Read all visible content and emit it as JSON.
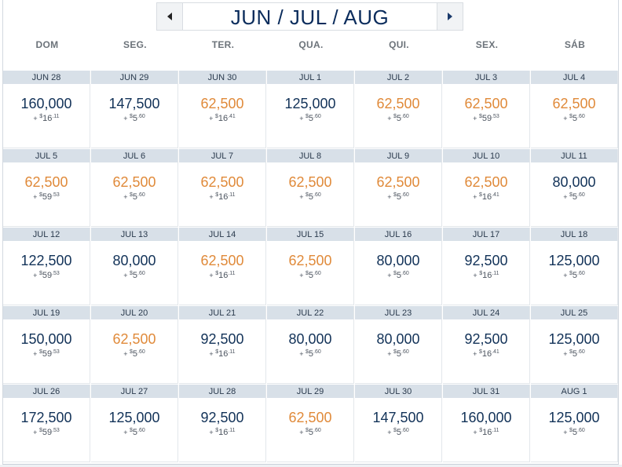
{
  "header": {
    "title": "JUN / JUL / AUG",
    "prev_icon": "triangle-left-icon",
    "next_icon": "triangle-right-icon"
  },
  "weekdays": [
    "DOM",
    "SEG.",
    "TER.",
    "QUA.",
    "QUI.",
    "SEX.",
    "SÁB"
  ],
  "colors": {
    "low_fare": "#e08a3a",
    "regular_fare": "#123258",
    "date_bar": "#d8e0e8",
    "title": "#0b2c5c"
  },
  "weeks": [
    [
      {
        "date": "JUN 28",
        "miles": "160,000",
        "plus": "+",
        "cur": "$",
        "dollars": "16",
        "cents": ".11",
        "low": false
      },
      {
        "date": "JUN 29",
        "miles": "147,500",
        "plus": "+",
        "cur": "$",
        "dollars": "5",
        "cents": ".60",
        "low": false
      },
      {
        "date": "JUN 30",
        "miles": "62,500",
        "plus": "+",
        "cur": "$",
        "dollars": "16",
        "cents": ".41",
        "low": true
      },
      {
        "date": "JUL 1",
        "miles": "125,000",
        "plus": "+",
        "cur": "$",
        "dollars": "5",
        "cents": ".60",
        "low": false
      },
      {
        "date": "JUL 2",
        "miles": "62,500",
        "plus": "+",
        "cur": "$",
        "dollars": "5",
        "cents": ".60",
        "low": true
      },
      {
        "date": "JUL 3",
        "miles": "62,500",
        "plus": "+",
        "cur": "$",
        "dollars": "59",
        "cents": ".53",
        "low": true
      },
      {
        "date": "JUL 4",
        "miles": "62,500",
        "plus": "+",
        "cur": "$",
        "dollars": "5",
        "cents": ".60",
        "low": true
      }
    ],
    [
      {
        "date": "JUL 5",
        "miles": "62,500",
        "plus": "+",
        "cur": "$",
        "dollars": "59",
        "cents": ".53",
        "low": true
      },
      {
        "date": "JUL 6",
        "miles": "62,500",
        "plus": "+",
        "cur": "$",
        "dollars": "5",
        "cents": ".60",
        "low": true
      },
      {
        "date": "JUL 7",
        "miles": "62,500",
        "plus": "+",
        "cur": "$",
        "dollars": "16",
        "cents": ".11",
        "low": true
      },
      {
        "date": "JUL 8",
        "miles": "62,500",
        "plus": "+",
        "cur": "$",
        "dollars": "5",
        "cents": ".60",
        "low": true
      },
      {
        "date": "JUL 9",
        "miles": "62,500",
        "plus": "+",
        "cur": "$",
        "dollars": "5",
        "cents": ".60",
        "low": true
      },
      {
        "date": "JUL 10",
        "miles": "62,500",
        "plus": "+",
        "cur": "$",
        "dollars": "16",
        "cents": ".41",
        "low": true
      },
      {
        "date": "JUL 11",
        "miles": "80,000",
        "plus": "+",
        "cur": "$",
        "dollars": "5",
        "cents": ".60",
        "low": false
      }
    ],
    [
      {
        "date": "JUL 12",
        "miles": "122,500",
        "plus": "+",
        "cur": "$",
        "dollars": "59",
        "cents": ".53",
        "low": false
      },
      {
        "date": "JUL 13",
        "miles": "80,000",
        "plus": "+",
        "cur": "$",
        "dollars": "5",
        "cents": ".60",
        "low": false
      },
      {
        "date": "JUL 14",
        "miles": "62,500",
        "plus": "+",
        "cur": "$",
        "dollars": "16",
        "cents": ".11",
        "low": true
      },
      {
        "date": "JUL 15",
        "miles": "62,500",
        "plus": "+",
        "cur": "$",
        "dollars": "5",
        "cents": ".60",
        "low": true
      },
      {
        "date": "JUL 16",
        "miles": "80,000",
        "plus": "+",
        "cur": "$",
        "dollars": "5",
        "cents": ".60",
        "low": false
      },
      {
        "date": "JUL 17",
        "miles": "92,500",
        "plus": "+",
        "cur": "$",
        "dollars": "16",
        "cents": ".11",
        "low": false
      },
      {
        "date": "JUL 18",
        "miles": "125,000",
        "plus": "+",
        "cur": "$",
        "dollars": "5",
        "cents": ".60",
        "low": false
      }
    ],
    [
      {
        "date": "JUL 19",
        "miles": "150,000",
        "plus": "+",
        "cur": "$",
        "dollars": "59",
        "cents": ".53",
        "low": false
      },
      {
        "date": "JUL 20",
        "miles": "62,500",
        "plus": "+",
        "cur": "$",
        "dollars": "5",
        "cents": ".60",
        "low": true
      },
      {
        "date": "JUL 21",
        "miles": "92,500",
        "plus": "+",
        "cur": "$",
        "dollars": "16",
        "cents": ".11",
        "low": false
      },
      {
        "date": "JUL 22",
        "miles": "80,000",
        "plus": "+",
        "cur": "$",
        "dollars": "5",
        "cents": ".60",
        "low": false
      },
      {
        "date": "JUL 23",
        "miles": "80,000",
        "plus": "+",
        "cur": "$",
        "dollars": "5",
        "cents": ".60",
        "low": false
      },
      {
        "date": "JUL 24",
        "miles": "92,500",
        "plus": "+",
        "cur": "$",
        "dollars": "16",
        "cents": ".41",
        "low": false
      },
      {
        "date": "JUL 25",
        "miles": "125,000",
        "plus": "+",
        "cur": "$",
        "dollars": "5",
        "cents": ".60",
        "low": false
      }
    ],
    [
      {
        "date": "JUL 26",
        "miles": "172,500",
        "plus": "+",
        "cur": "$",
        "dollars": "59",
        "cents": ".53",
        "low": false
      },
      {
        "date": "JUL 27",
        "miles": "125,000",
        "plus": "+",
        "cur": "$",
        "dollars": "5",
        "cents": ".60",
        "low": false
      },
      {
        "date": "JUL 28",
        "miles": "92,500",
        "plus": "+",
        "cur": "$",
        "dollars": "16",
        "cents": ".11",
        "low": false
      },
      {
        "date": "JUL 29",
        "miles": "62,500",
        "plus": "+",
        "cur": "$",
        "dollars": "5",
        "cents": ".60",
        "low": true
      },
      {
        "date": "JUL 30",
        "miles": "147,500",
        "plus": "+",
        "cur": "$",
        "dollars": "5",
        "cents": ".60",
        "low": false
      },
      {
        "date": "JUL 31",
        "miles": "160,000",
        "plus": "+",
        "cur": "$",
        "dollars": "16",
        "cents": ".11",
        "low": false
      },
      {
        "date": "AUG 1",
        "miles": "125,000",
        "plus": "+",
        "cur": "$",
        "dollars": "5",
        "cents": ".60",
        "low": false
      }
    ]
  ]
}
